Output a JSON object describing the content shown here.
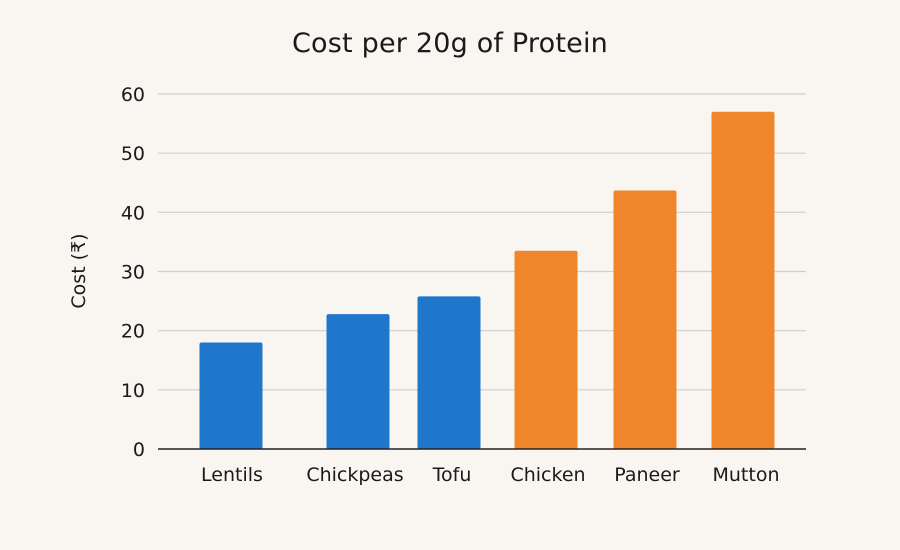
{
  "chart_data": {
    "type": "bar",
    "title": "Cost per 20g of Protein",
    "xlabel": "",
    "ylabel": "Cost (₹)",
    "ylim": [
      0,
      60
    ],
    "yticks": [
      0,
      10,
      20,
      30,
      40,
      50,
      60
    ],
    "grid": true,
    "legend": "none",
    "categories": [
      "Lentils",
      "Chickpeas",
      "Tofu",
      "Chicken",
      "Paneer",
      "Mutton"
    ],
    "values": [
      18,
      22.8,
      25.8,
      33.5,
      43.7,
      57
    ],
    "bar_colors": [
      "#1f77cc",
      "#1f77cc",
      "#1f77cc",
      "#f0862b",
      "#f0862b",
      "#f0862b"
    ]
  },
  "colors": {
    "background": "#f9f6f1",
    "grid": "#cfcfcf",
    "axis": "#222222",
    "plant": "#1f77cc",
    "animal": "#f0862b"
  }
}
